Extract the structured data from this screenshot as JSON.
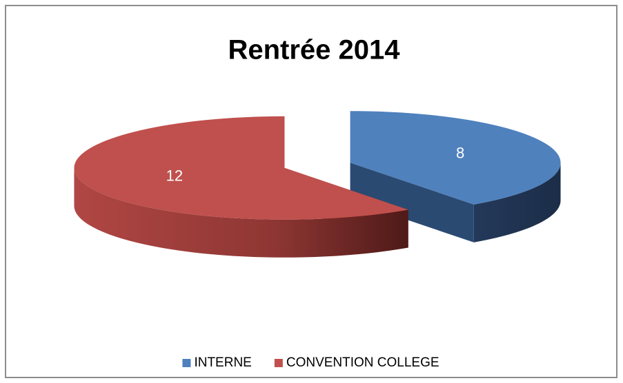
{
  "chart_data": {
    "type": "pie",
    "title": "Rentrée 2014",
    "categories": [
      "INTERNE",
      "CONVENTION COLLEGE"
    ],
    "values": [
      8,
      12
    ],
    "colors": [
      "#4f81bd",
      "#c0504d"
    ],
    "legend": "bottom",
    "data_labels": true
  }
}
